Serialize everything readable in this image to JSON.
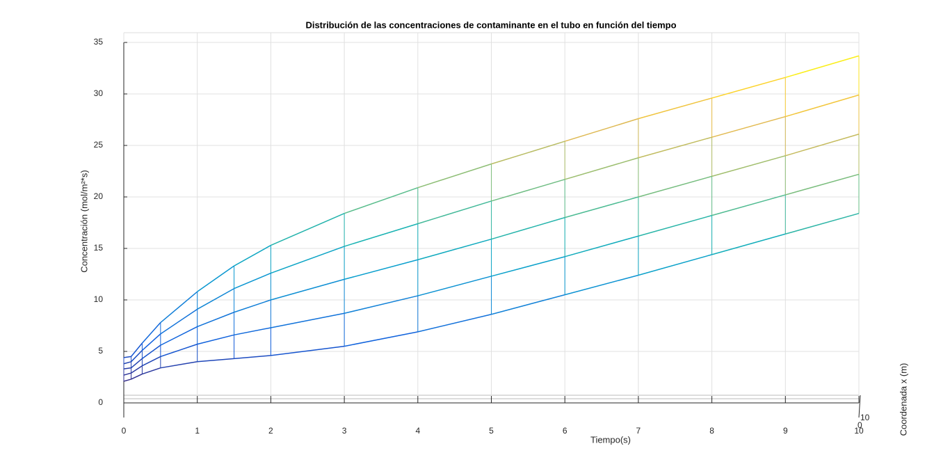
{
  "chart_data": {
    "type": "mesh",
    "title": "Distribución de las concentraciones de contaminante en el tubo en función del tiempo",
    "xlabel": "Tiempo(s)",
    "ylabel": "Concentración (mol/m²*s)",
    "zlabel": "Coordenada x (m)",
    "depth_ticks": [
      10,
      0
    ],
    "x": [
      0,
      0.1,
      0.25,
      0.5,
      1,
      1.5,
      2,
      3,
      4,
      5,
      6,
      7,
      8,
      9,
      10
    ],
    "series": [
      {
        "values": [
          2.1,
          2.3,
          2.8,
          3.4,
          4.0,
          4.3,
          4.6,
          5.5,
          6.9,
          8.6,
          10.5,
          12.4,
          14.4,
          16.4,
          18.4
        ]
      },
      {
        "values": [
          2.7,
          2.9,
          3.6,
          4.5,
          5.7,
          6.6,
          7.3,
          8.7,
          10.4,
          12.3,
          14.2,
          16.2,
          18.2,
          20.2,
          22.2
        ]
      },
      {
        "values": [
          3.3,
          3.4,
          4.3,
          5.6,
          7.4,
          8.8,
          10.0,
          12.0,
          13.9,
          15.9,
          18.0,
          20.0,
          22.0,
          24.0,
          26.1
        ]
      },
      {
        "values": [
          3.8,
          4.0,
          5.1,
          6.7,
          9.1,
          11.1,
          12.6,
          15.2,
          17.4,
          19.6,
          21.7,
          23.8,
          25.8,
          27.8,
          29.9
        ]
      },
      {
        "values": [
          4.4,
          4.5,
          5.8,
          7.8,
          10.8,
          13.3,
          15.3,
          18.4,
          20.9,
          23.2,
          25.4,
          27.6,
          29.6,
          31.6,
          33.7
        ]
      }
    ],
    "colormap": [
      "#352a87",
      "#0f5cdd",
      "#127dd8",
      "#079ccf",
      "#15b1b4",
      "#59bd8c",
      "#a5be6b",
      "#e1b952",
      "#fcce2e",
      "#f9fb0e"
    ],
    "xlim": [
      0,
      10
    ],
    "ylim": [
      0,
      35
    ],
    "xticks": [
      0,
      1,
      2,
      3,
      4,
      5,
      6,
      7,
      8,
      9,
      10
    ],
    "yticks": [
      0,
      5,
      10,
      15,
      20,
      25,
      30,
      35
    ],
    "grid": true
  }
}
